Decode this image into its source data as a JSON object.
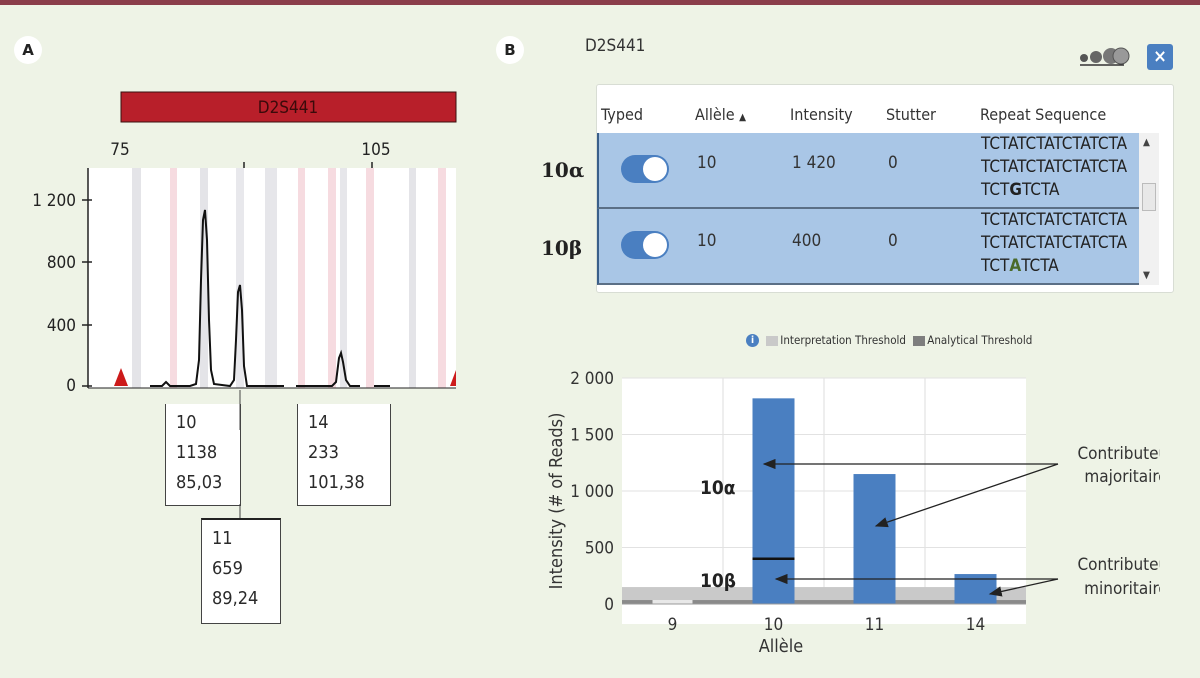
{
  "panel_a": {
    "label": "A",
    "marker": "D2S441",
    "scale_left": "75",
    "scale_right": "105",
    "y_ticks": [
      "1 200",
      "800",
      "400",
      "0"
    ],
    "peaks": [
      {
        "allele": "10",
        "height": "1138",
        "size": "85,03"
      },
      {
        "allele": "11",
        "height": "659",
        "size": "89,24"
      },
      {
        "allele": "14",
        "height": "233",
        "size": "101,38"
      }
    ]
  },
  "panel_b": {
    "label": "B",
    "locus": "D2S441",
    "close_label": "×",
    "table": {
      "headers": {
        "typed": "Typed",
        "allele": "Allèle",
        "intensity": "Intensity",
        "stutter": "Stutter",
        "repeat": "Repeat Sequence"
      },
      "sort_indicator": "▲",
      "rows": [
        {
          "row_label": "10α",
          "typed": true,
          "allele": "10",
          "intensity": "1 420",
          "stutter": "0",
          "seq_line1": "TCTATCTATCTATCTA",
          "seq_line2": "TCTATCTATCTATCTA",
          "seq_pre": "TCT",
          "seq_var": "G",
          "seq_post": "TCTA"
        },
        {
          "row_label": "10β",
          "typed": true,
          "allele": "10",
          "intensity": "400",
          "stutter": "0",
          "seq_line1": "TCTATCTATCTATCTA",
          "seq_line2": "TCTATCTATCTATCTA",
          "seq_pre": "TCT",
          "seq_var": "A",
          "seq_post": "TCTA"
        }
      ]
    },
    "legend": {
      "info_icon": "i",
      "interpretation": "Interpretation Threshold",
      "analytical": "Analytical Threshold"
    },
    "annotations": {
      "majority": [
        "Contributeur",
        "majoritaire"
      ],
      "minority": [
        "Contributeur",
        "minoritaire"
      ],
      "alpha": "10α",
      "beta": "10β"
    }
  },
  "chart_data": {
    "type": "bar",
    "categories": [
      "9",
      "10",
      "11",
      "14"
    ],
    "values": [
      0,
      1820,
      1150,
      265
    ],
    "split_marker_on_10": 400,
    "xlabel": "Allèle",
    "ylabel": "Intensity (# of Reads)",
    "y_ticks": [
      "2 000",
      "1 500",
      "1 000",
      "500",
      "0"
    ],
    "y_tick_values": [
      2000,
      1500,
      1000,
      500,
      0
    ],
    "ylim": [
      0,
      2000
    ],
    "interpretation_threshold": 150,
    "analytical_threshold": 35,
    "bar_color": "#4a7fc1"
  }
}
